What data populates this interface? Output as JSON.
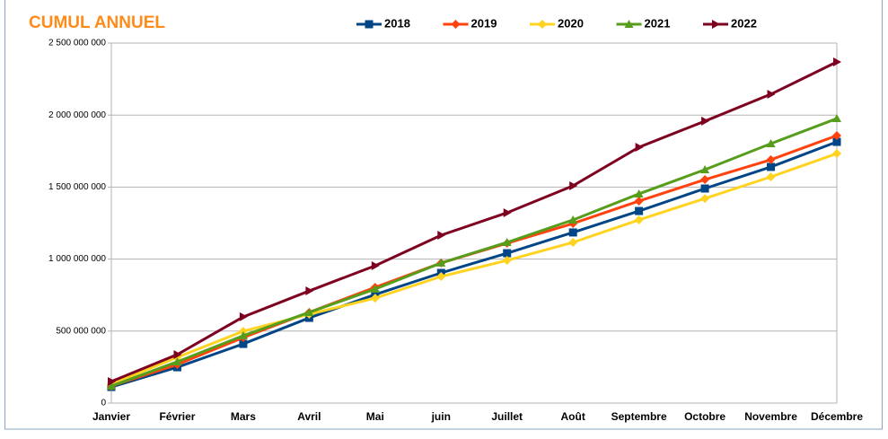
{
  "chart_data": {
    "type": "line",
    "title": "CUMUL ANNUEL",
    "categories": [
      "Janvier",
      "Février",
      "Mars",
      "Avril",
      "Mai",
      "juin",
      "Juillet",
      "Août",
      "Septembre",
      "Octobre",
      "Novembre",
      "Décembre"
    ],
    "series": [
      {
        "name": "2018",
        "color": "#004586",
        "marker": "square",
        "values": [
          112000000,
          249000000,
          411000000,
          592000000,
          754000000,
          904000000,
          1041000000,
          1185000000,
          1334000000,
          1490000000,
          1640000000,
          1814000000
        ]
      },
      {
        "name": "2019",
        "color": "#ff420e",
        "marker": "diamond",
        "values": [
          118000000,
          268000000,
          455000000,
          630000000,
          804000000,
          973000000,
          1110000000,
          1247000000,
          1403000000,
          1552000000,
          1690000000,
          1858000000
        ]
      },
      {
        "name": "2020",
        "color": "#ffd320",
        "marker": "diamond",
        "values": [
          131000000,
          318000000,
          499000000,
          617000000,
          729000000,
          879000000,
          991000000,
          1116000000,
          1272000000,
          1421000000,
          1571000000,
          1733000000
        ]
      },
      {
        "name": "2021",
        "color": "#579d1c",
        "marker": "triangle-up",
        "values": [
          118000000,
          287000000,
          468000000,
          630000000,
          792000000,
          973000000,
          1116000000,
          1272000000,
          1453000000,
          1621000000,
          1802000000,
          1976000000
        ]
      },
      {
        "name": "2022",
        "color": "#7e0021",
        "marker": "triangle-right",
        "values": [
          150000000,
          337000000,
          599000000,
          779000000,
          954000000,
          1166000000,
          1322000000,
          1509000000,
          1777000000,
          1958000000,
          2145000000,
          2369000000
        ]
      }
    ],
    "ylim": [
      0,
      2500000000
    ],
    "yticks": [
      0,
      {
        "value": 500000000,
        "label": "500 000 000"
      },
      {
        "value": 1000000000,
        "label": "1 000 000 000"
      },
      {
        "value": 1500000000,
        "label": "1 500 000 000"
      },
      {
        "value": 2000000000,
        "label": "2 000 000 000"
      },
      {
        "value": 2500000000,
        "label": "2 500 000 000"
      }
    ],
    "grid": true,
    "legend": "top"
  }
}
